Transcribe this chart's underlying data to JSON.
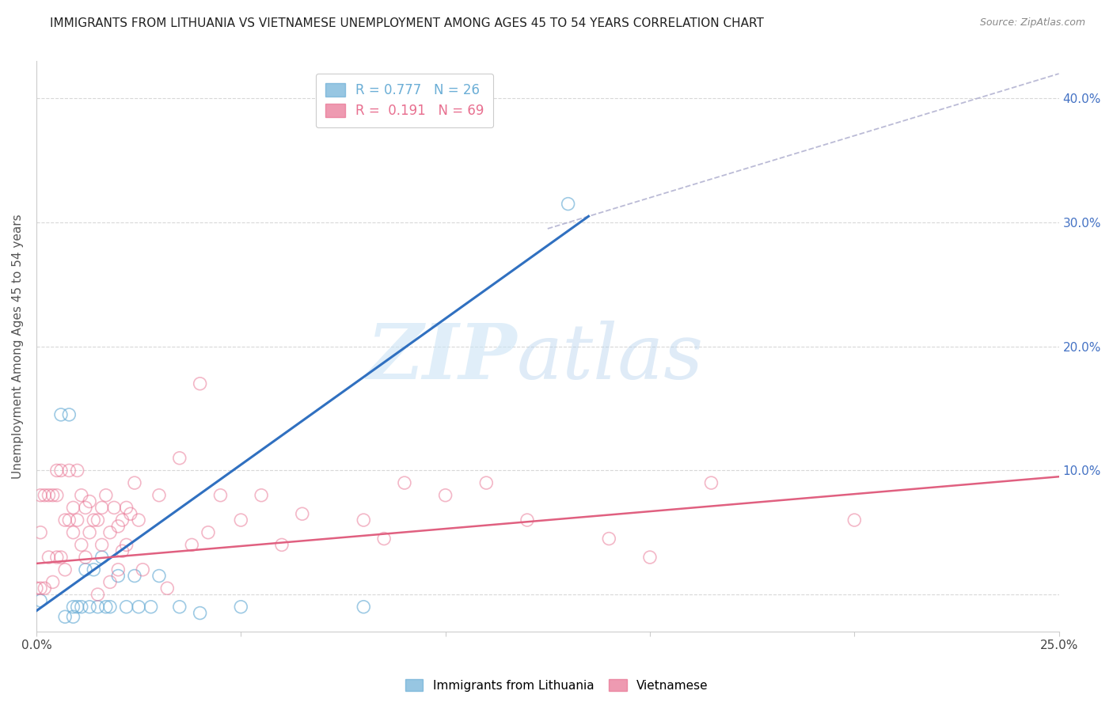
{
  "title": "IMMIGRANTS FROM LITHUANIA VS VIETNAMESE UNEMPLOYMENT AMONG AGES 45 TO 54 YEARS CORRELATION CHART",
  "source": "Source: ZipAtlas.com",
  "ylabel": "Unemployment Among Ages 45 to 54 years",
  "xlim": [
    0.0,
    0.25
  ],
  "ylim": [
    -0.03,
    0.43
  ],
  "xticks": [
    0.0,
    0.05,
    0.1,
    0.15,
    0.2,
    0.25
  ],
  "xtick_labels": [
    "0.0%",
    "",
    "",
    "",
    "",
    "25.0%"
  ],
  "yticks": [
    0.0,
    0.1,
    0.2,
    0.3,
    0.4
  ],
  "ytick_labels": [
    "",
    "10.0%",
    "20.0%",
    "30.0%",
    "40.0%"
  ],
  "background_color": "#ffffff",
  "grid_color": "#d8d8d8",
  "legend_entries": [
    {
      "label": "R = 0.777   N = 26",
      "color": "#6baed6"
    },
    {
      "label": "R =  0.191   N = 69",
      "color": "#e87090"
    }
  ],
  "blue_scatter_x": [
    0.001,
    0.006,
    0.008,
    0.009,
    0.01,
    0.011,
    0.012,
    0.013,
    0.014,
    0.015,
    0.016,
    0.017,
    0.018,
    0.02,
    0.022,
    0.024,
    0.025,
    0.028,
    0.03,
    0.035,
    0.04,
    0.05,
    0.08,
    0.13,
    0.007,
    0.009
  ],
  "blue_scatter_y": [
    -0.005,
    0.145,
    0.145,
    -0.01,
    -0.01,
    -0.01,
    0.02,
    -0.01,
    0.02,
    -0.01,
    0.03,
    -0.01,
    -0.01,
    0.015,
    -0.01,
    0.015,
    -0.01,
    -0.01,
    0.015,
    -0.01,
    -0.015,
    -0.01,
    -0.01,
    0.315,
    -0.018,
    -0.018
  ],
  "pink_scatter_x": [
    0.0,
    0.001,
    0.001,
    0.001,
    0.002,
    0.002,
    0.003,
    0.003,
    0.004,
    0.004,
    0.005,
    0.005,
    0.005,
    0.006,
    0.006,
    0.007,
    0.007,
    0.008,
    0.008,
    0.009,
    0.009,
    0.01,
    0.01,
    0.011,
    0.011,
    0.012,
    0.012,
    0.013,
    0.013,
    0.014,
    0.015,
    0.015,
    0.016,
    0.016,
    0.017,
    0.018,
    0.018,
    0.019,
    0.02,
    0.02,
    0.021,
    0.021,
    0.022,
    0.022,
    0.023,
    0.024,
    0.025,
    0.026,
    0.03,
    0.032,
    0.035,
    0.038,
    0.04,
    0.042,
    0.045,
    0.05,
    0.055,
    0.06,
    0.065,
    0.08,
    0.085,
    0.09,
    0.1,
    0.11,
    0.12,
    0.14,
    0.15,
    0.165,
    0.2
  ],
  "pink_scatter_y": [
    0.005,
    0.08,
    0.05,
    0.005,
    0.08,
    0.005,
    0.08,
    0.03,
    0.08,
    0.01,
    0.1,
    0.08,
    0.03,
    0.1,
    0.03,
    0.06,
    0.02,
    0.1,
    0.06,
    0.07,
    0.05,
    0.1,
    0.06,
    0.08,
    0.04,
    0.07,
    0.03,
    0.075,
    0.05,
    0.06,
    0.06,
    0.0,
    0.07,
    0.04,
    0.08,
    0.05,
    0.01,
    0.07,
    0.055,
    0.02,
    0.06,
    0.035,
    0.07,
    0.04,
    0.065,
    0.09,
    0.06,
    0.02,
    0.08,
    0.005,
    0.11,
    0.04,
    0.17,
    0.05,
    0.08,
    0.06,
    0.08,
    0.04,
    0.065,
    0.06,
    0.045,
    0.09,
    0.08,
    0.09,
    0.06,
    0.045,
    0.03,
    0.09,
    0.06
  ],
  "blue_line_x": [
    -0.005,
    0.135
  ],
  "blue_line_y": [
    -0.025,
    0.305
  ],
  "pink_line_x": [
    0.0,
    0.25
  ],
  "pink_line_y": [
    0.025,
    0.095
  ],
  "dashed_line_x": [
    0.125,
    0.25
  ],
  "dashed_line_y": [
    0.295,
    0.42
  ],
  "blue_color": "#6baed6",
  "pink_color": "#e87090",
  "blue_line_color": "#3070c0",
  "pink_line_color": "#e06080",
  "dashed_color": "#aaaacc",
  "right_axis_color": "#4472c4",
  "title_color": "#222222",
  "source_color": "#888888",
  "ylabel_color": "#555555"
}
